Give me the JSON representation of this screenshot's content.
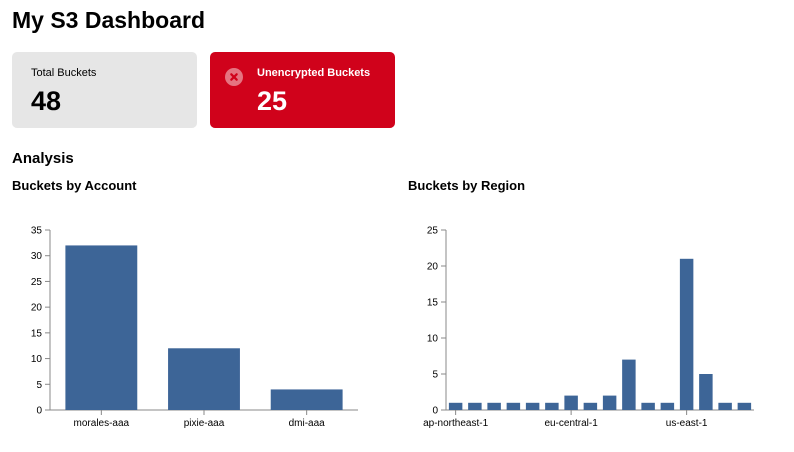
{
  "dashboard": {
    "title": "My S3 Dashboard"
  },
  "cards": {
    "total": {
      "label": "Total Buckets",
      "value": "48"
    },
    "unencrypted": {
      "label": "Unencrypted Buckets",
      "value": "25",
      "icon": "error-circle-icon"
    }
  },
  "analysis": {
    "title": "Analysis"
  },
  "colors": {
    "bar": "#3d6597",
    "danger": "#d0021b",
    "card_bg": "#e6e6e6",
    "axis": "#888888"
  },
  "chart_data": [
    {
      "type": "bar",
      "title": "Buckets by Account",
      "categories": [
        "morales-aaa",
        "pixie-aaa",
        "dmi-aaa"
      ],
      "values": [
        32,
        12,
        4
      ],
      "ylim": [
        0,
        35
      ],
      "yticks": [
        0,
        5,
        10,
        15,
        20,
        25,
        30,
        35
      ],
      "grid": false
    },
    {
      "type": "bar",
      "title": "Buckets by Region",
      "categories": [
        "ap-northeast-1",
        "",
        "",
        "",
        "",
        "",
        "eu-central-1",
        "",
        "",
        "",
        "",
        "",
        "us-east-1",
        "",
        "",
        ""
      ],
      "values": [
        1,
        1,
        1,
        1,
        1,
        1,
        2,
        1,
        2,
        7,
        1,
        1,
        21,
        5,
        1,
        1
      ],
      "ylim": [
        0,
        25
      ],
      "yticks": [
        0,
        5,
        10,
        15,
        20,
        25
      ],
      "grid": false
    }
  ]
}
